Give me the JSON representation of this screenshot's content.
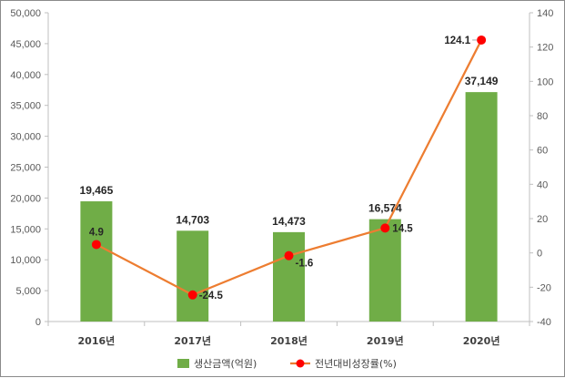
{
  "chart_data": {
    "type": "bar+line",
    "title": "",
    "categories": [
      "2016년",
      "2017년",
      "2018년",
      "2019년",
      "2020년"
    ],
    "series": [
      {
        "name": "생산금액(억원)",
        "type": "bar",
        "axis": "left",
        "color": "#70ad47",
        "values": [
          19465,
          14703,
          14473,
          16574,
          37149
        ],
        "labels": [
          "19,465",
          "14,703",
          "14,473",
          "16,574",
          "37,149"
        ]
      },
      {
        "name": "전년대비성장률(%)",
        "type": "line",
        "axis": "right",
        "line_color": "#ed7d31",
        "marker_color": "#ff0000",
        "values": [
          4.9,
          -24.5,
          -1.6,
          14.5,
          124.1
        ],
        "labels": [
          "4.9",
          "-24.5",
          "-1.6",
          "14.5",
          "124.1"
        ]
      }
    ],
    "y_left": {
      "lim": [
        0,
        50000
      ],
      "ticks": [
        0,
        5000,
        10000,
        15000,
        20000,
        25000,
        30000,
        35000,
        40000,
        45000,
        50000
      ],
      "tick_labels": [
        "0",
        "5,000",
        "10,000",
        "15,000",
        "20,000",
        "25,000",
        "30,000",
        "35,000",
        "40,000",
        "45,000",
        "50,000"
      ]
    },
    "y_right": {
      "lim": [
        -40,
        140
      ],
      "ticks": [
        -40,
        -20,
        0,
        20,
        40,
        60,
        80,
        100,
        120,
        140
      ],
      "tick_labels": [
        "-40",
        "-20",
        "0",
        "20",
        "40",
        "60",
        "80",
        "100",
        "120",
        "140"
      ]
    },
    "legend_position": "bottom",
    "grid": false
  }
}
